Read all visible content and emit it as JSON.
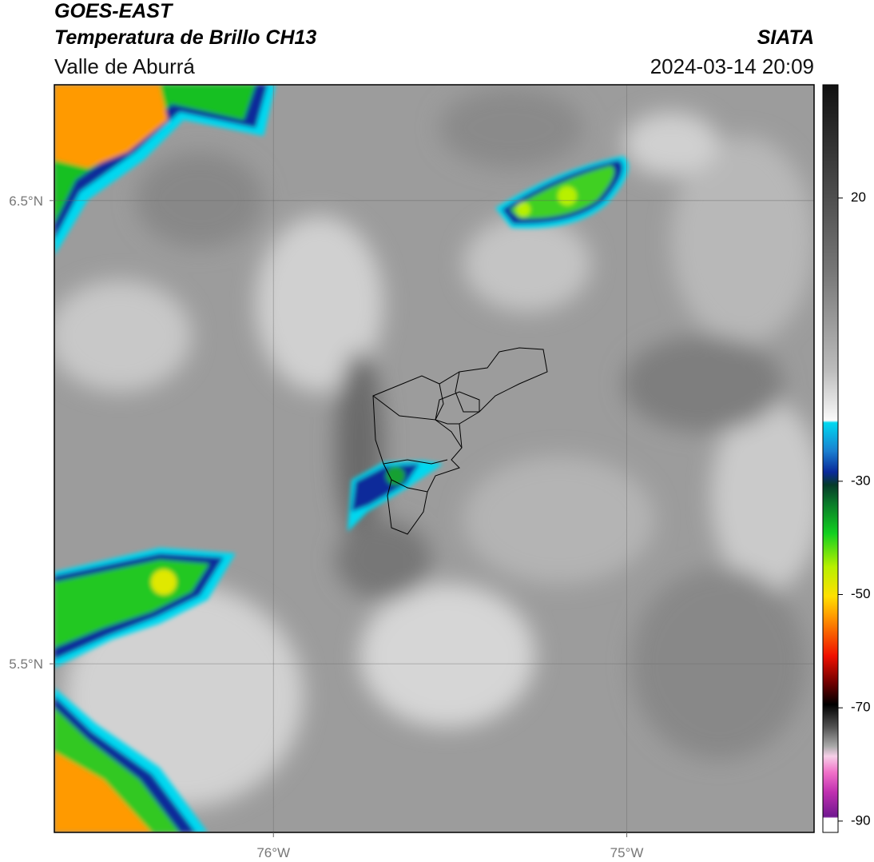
{
  "header": {
    "title": "GOES-EAST",
    "subtitle": "Temperatura de Brillo CH13",
    "region": "Valle de Aburrá",
    "source": "SIATA",
    "datetime": "2024-03-14 20:09"
  },
  "map": {
    "xlim": [
      -76.62,
      -74.47
    ],
    "ylim": [
      5.136,
      6.75
    ],
    "xticks": [
      {
        "value": -76,
        "label": "76°W"
      },
      {
        "value": -75,
        "label": "75°W"
      }
    ],
    "yticks": [
      {
        "value": 6.5,
        "label": "6.5°N"
      },
      {
        "value": 5.5,
        "label": "5.5°N"
      }
    ],
    "grid": true
  },
  "colorbar": {
    "lim": [
      -92,
      40
    ],
    "ticks": [
      20,
      -30,
      -50,
      -70,
      -90
    ]
  }
}
